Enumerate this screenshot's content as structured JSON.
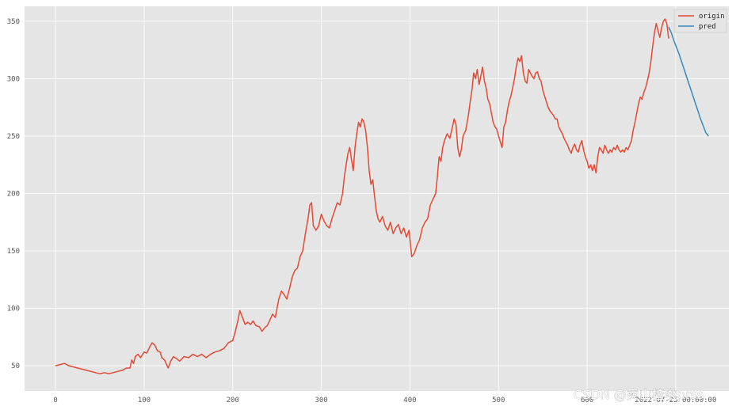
{
  "chart_data": {
    "type": "line",
    "title": "",
    "xlabel": "",
    "ylabel": "",
    "xlim": [
      -35,
      760
    ],
    "ylim": [
      28,
      363
    ],
    "xticks": [
      {
        "value": 0,
        "label": "0"
      },
      {
        "value": 100,
        "label": "100"
      },
      {
        "value": 200,
        "label": "200"
      },
      {
        "value": 300,
        "label": "300"
      },
      {
        "value": 400,
        "label": "400"
      },
      {
        "value": 500,
        "label": "500"
      },
      {
        "value": 600,
        "label": "600"
      },
      {
        "value": 700,
        "label": "2022-07-25 00:00:00"
      }
    ],
    "yticks": [
      50,
      100,
      150,
      200,
      250,
      300,
      350
    ],
    "grid": true,
    "legend": {
      "placement": "top-right",
      "entries": [
        "origin",
        "pred"
      ]
    },
    "series": [
      {
        "name": "origin",
        "color": "#e24a33",
        "points": [
          [
            0,
            50
          ],
          [
            5,
            51
          ],
          [
            10,
            52
          ],
          [
            15,
            50
          ],
          [
            20,
            49
          ],
          [
            25,
            48
          ],
          [
            30,
            47
          ],
          [
            35,
            46
          ],
          [
            40,
            45
          ],
          [
            45,
            44
          ],
          [
            50,
            43
          ],
          [
            55,
            44
          ],
          [
            60,
            43
          ],
          [
            65,
            44
          ],
          [
            70,
            45
          ],
          [
            75,
            46
          ],
          [
            80,
            48
          ],
          [
            84,
            48
          ],
          [
            86,
            55
          ],
          [
            88,
            52
          ],
          [
            90,
            58
          ],
          [
            93,
            60
          ],
          [
            96,
            57
          ],
          [
            100,
            62
          ],
          [
            103,
            61
          ],
          [
            106,
            66
          ],
          [
            109,
            70
          ],
          [
            112,
            68
          ],
          [
            115,
            63
          ],
          [
            118,
            62
          ],
          [
            120,
            57
          ],
          [
            123,
            55
          ],
          [
            127,
            48
          ],
          [
            130,
            54
          ],
          [
            133,
            58
          ],
          [
            137,
            56
          ],
          [
            140,
            54
          ],
          [
            145,
            58
          ],
          [
            150,
            57
          ],
          [
            155,
            60
          ],
          [
            160,
            58
          ],
          [
            165,
            60
          ],
          [
            170,
            57
          ],
          [
            175,
            60
          ],
          [
            180,
            62
          ],
          [
            185,
            63
          ],
          [
            190,
            65
          ],
          [
            195,
            70
          ],
          [
            200,
            72
          ],
          [
            203,
            80
          ],
          [
            206,
            90
          ],
          [
            208,
            98
          ],
          [
            211,
            92
          ],
          [
            214,
            86
          ],
          [
            217,
            88
          ],
          [
            220,
            86
          ],
          [
            223,
            89
          ],
          [
            226,
            85
          ],
          [
            230,
            84
          ],
          [
            233,
            80
          ],
          [
            236,
            83
          ],
          [
            239,
            85
          ],
          [
            242,
            90
          ],
          [
            245,
            95
          ],
          [
            248,
            92
          ],
          [
            250,
            100
          ],
          [
            252,
            108
          ],
          [
            255,
            115
          ],
          [
            258,
            112
          ],
          [
            261,
            108
          ],
          [
            264,
            117
          ],
          [
            267,
            127
          ],
          [
            270,
            133
          ],
          [
            273,
            135
          ],
          [
            276,
            145
          ],
          [
            279,
            150
          ],
          [
            282,
            165
          ],
          [
            285,
            178
          ],
          [
            287,
            190
          ],
          [
            289,
            192
          ],
          [
            291,
            172
          ],
          [
            294,
            168
          ],
          [
            297,
            172
          ],
          [
            300,
            182
          ],
          [
            303,
            176
          ],
          [
            306,
            172
          ],
          [
            309,
            170
          ],
          [
            312,
            178
          ],
          [
            315,
            185
          ],
          [
            318,
            192
          ],
          [
            321,
            190
          ],
          [
            324,
            200
          ],
          [
            326,
            215
          ],
          [
            328,
            225
          ],
          [
            330,
            235
          ],
          [
            332,
            240
          ],
          [
            334,
            230
          ],
          [
            336,
            220
          ],
          [
            338,
            240
          ],
          [
            340,
            252
          ],
          [
            342,
            262
          ],
          [
            344,
            258
          ],
          [
            346,
            265
          ],
          [
            348,
            262
          ],
          [
            350,
            255
          ],
          [
            352,
            240
          ],
          [
            354,
            220
          ],
          [
            356,
            208
          ],
          [
            358,
            212
          ],
          [
            360,
            198
          ],
          [
            362,
            185
          ],
          [
            364,
            178
          ],
          [
            366,
            175
          ],
          [
            369,
            180
          ],
          [
            372,
            172
          ],
          [
            375,
            168
          ],
          [
            378,
            175
          ],
          [
            381,
            165
          ],
          [
            384,
            170
          ],
          [
            387,
            173
          ],
          [
            390,
            165
          ],
          [
            393,
            170
          ],
          [
            396,
            162
          ],
          [
            399,
            168
          ],
          [
            402,
            145
          ],
          [
            405,
            148
          ],
          [
            408,
            155
          ],
          [
            411,
            160
          ],
          [
            414,
            170
          ],
          [
            417,
            175
          ],
          [
            420,
            178
          ],
          [
            423,
            190
          ],
          [
            426,
            195
          ],
          [
            429,
            200
          ],
          [
            431,
            215
          ],
          [
            433,
            232
          ],
          [
            435,
            228
          ],
          [
            437,
            240
          ],
          [
            439,
            246
          ],
          [
            442,
            252
          ],
          [
            445,
            248
          ],
          [
            448,
            258
          ],
          [
            450,
            265
          ],
          [
            452,
            260
          ],
          [
            454,
            240
          ],
          [
            456,
            232
          ],
          [
            458,
            238
          ],
          [
            460,
            250
          ],
          [
            463,
            255
          ],
          [
            466,
            268
          ],
          [
            468,
            280
          ],
          [
            470,
            290
          ],
          [
            472,
            305
          ],
          [
            474,
            300
          ],
          [
            476,
            308
          ],
          [
            478,
            295
          ],
          [
            480,
            302
          ],
          [
            482,
            310
          ],
          [
            484,
            298
          ],
          [
            486,
            292
          ],
          [
            488,
            282
          ],
          [
            490,
            278
          ],
          [
            492,
            270
          ],
          [
            494,
            262
          ],
          [
            496,
            258
          ],
          [
            498,
            256
          ],
          [
            500,
            250
          ],
          [
            502,
            245
          ],
          [
            504,
            240
          ],
          [
            506,
            258
          ],
          [
            508,
            262
          ],
          [
            510,
            272
          ],
          [
            512,
            280
          ],
          [
            514,
            285
          ],
          [
            516,
            292
          ],
          [
            518,
            300
          ],
          [
            520,
            310
          ],
          [
            522,
            318
          ],
          [
            524,
            315
          ],
          [
            526,
            320
          ],
          [
            528,
            305
          ],
          [
            530,
            298
          ],
          [
            532,
            296
          ],
          [
            534,
            308
          ],
          [
            536,
            305
          ],
          [
            538,
            302
          ],
          [
            540,
            300
          ],
          [
            542,
            305
          ],
          [
            544,
            306
          ],
          [
            546,
            300
          ],
          [
            548,
            298
          ],
          [
            550,
            290
          ],
          [
            552,
            285
          ],
          [
            554,
            280
          ],
          [
            556,
            275
          ],
          [
            558,
            272
          ],
          [
            560,
            270
          ],
          [
            562,
            268
          ],
          [
            564,
            265
          ],
          [
            566,
            265
          ],
          [
            568,
            258
          ],
          [
            570,
            255
          ],
          [
            572,
            252
          ],
          [
            574,
            248
          ],
          [
            576,
            245
          ],
          [
            578,
            242
          ],
          [
            580,
            238
          ],
          [
            582,
            235
          ],
          [
            584,
            240
          ],
          [
            586,
            243
          ],
          [
            588,
            238
          ],
          [
            590,
            236
          ],
          [
            592,
            242
          ],
          [
            594,
            246
          ],
          [
            596,
            238
          ],
          [
            598,
            232
          ],
          [
            600,
            228
          ],
          [
            602,
            222
          ],
          [
            604,
            225
          ],
          [
            606,
            220
          ],
          [
            608,
            225
          ],
          [
            610,
            218
          ],
          [
            612,
            232
          ],
          [
            614,
            240
          ],
          [
            616,
            238
          ],
          [
            618,
            235
          ],
          [
            620,
            242
          ],
          [
            622,
            238
          ],
          [
            624,
            235
          ],
          [
            626,
            238
          ],
          [
            628,
            236
          ],
          [
            630,
            240
          ],
          [
            632,
            238
          ],
          [
            634,
            242
          ],
          [
            636,
            238
          ],
          [
            638,
            236
          ],
          [
            640,
            238
          ],
          [
            642,
            236
          ],
          [
            644,
            240
          ],
          [
            646,
            238
          ],
          [
            648,
            242
          ],
          [
            650,
            246
          ],
          [
            652,
            255
          ],
          [
            654,
            262
          ],
          [
            656,
            270
          ],
          [
            658,
            278
          ],
          [
            660,
            284
          ],
          [
            662,
            282
          ],
          [
            664,
            288
          ],
          [
            666,
            292
          ],
          [
            668,
            298
          ],
          [
            670,
            305
          ],
          [
            672,
            315
          ],
          [
            674,
            328
          ],
          [
            676,
            340
          ],
          [
            678,
            348
          ],
          [
            680,
            342
          ],
          [
            682,
            336
          ],
          [
            684,
            344
          ],
          [
            686,
            350
          ],
          [
            688,
            352
          ],
          [
            690,
            348
          ],
          [
            692,
            335
          ]
        ]
      },
      {
        "name": "pred",
        "color": "#348abd",
        "points": [
          [
            692,
            345
          ],
          [
            695,
            340
          ],
          [
            698,
            333
          ],
          [
            701,
            327
          ],
          [
            704,
            321
          ],
          [
            707,
            314
          ],
          [
            710,
            307
          ],
          [
            713,
            300
          ],
          [
            716,
            293
          ],
          [
            719,
            286
          ],
          [
            722,
            279
          ],
          [
            725,
            272
          ],
          [
            728,
            265
          ],
          [
            731,
            259
          ],
          [
            734,
            253
          ],
          [
            737,
            250
          ]
        ]
      }
    ],
    "watermark": "CSDN @卖山楂啦prss"
  }
}
